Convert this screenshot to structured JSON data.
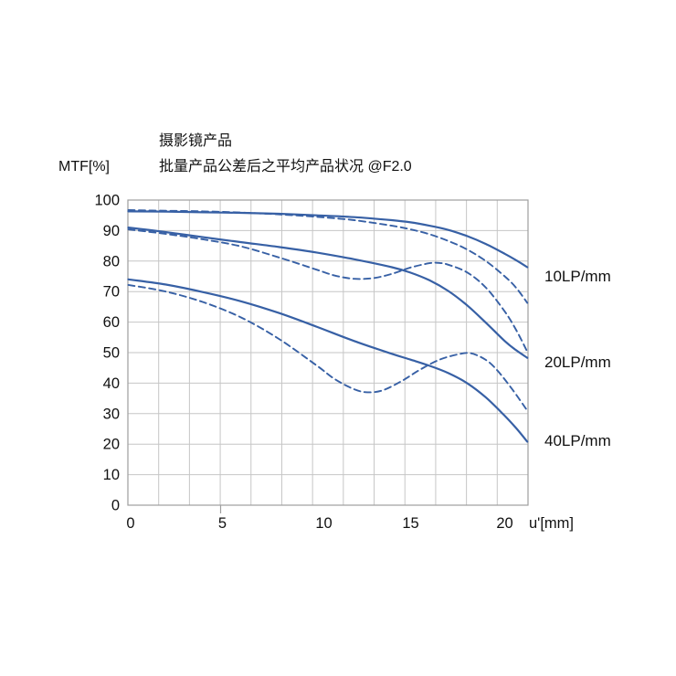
{
  "chart_data": {
    "type": "line",
    "title": "摄影镜产品",
    "subtitle": "批量产品公差后之平均产品状况 @F2.0",
    "ylabel": "MTF[%]",
    "xlabel": "u'[mm]",
    "xlim": [
      0,
      21.2
    ],
    "ylim": [
      0,
      100
    ],
    "x_ticks": [
      0,
      5,
      10,
      15,
      20
    ],
    "y_ticks": [
      0,
      10,
      20,
      30,
      40,
      50,
      60,
      70,
      80,
      90,
      100
    ],
    "grid": {
      "visible": true,
      "columns": 13,
      "rows": 10,
      "aligned_to_ticks": false
    },
    "legend_position": "right",
    "line_color": "#3760a5",
    "grid_color": "#c6c6c6",
    "axis_color": "#9e9e9e",
    "text_color": "#111111",
    "series_labels": [
      {
        "text": "10LP/mm"
      },
      {
        "text": "20LP/mm"
      },
      {
        "text": "40LP/mm"
      }
    ],
    "series": [
      {
        "name": "10LP/mm solid",
        "style": "solid",
        "points": [
          [
            0,
            96.3
          ],
          [
            2,
            96.2
          ],
          [
            4,
            96.0
          ],
          [
            6,
            95.8
          ],
          [
            8,
            95.5
          ],
          [
            10,
            95.0
          ],
          [
            12,
            94.4
          ],
          [
            14,
            93.4
          ],
          [
            15,
            92.7
          ],
          [
            16,
            91.6
          ],
          [
            17,
            90.2
          ],
          [
            18,
            88.2
          ],
          [
            19,
            85.6
          ],
          [
            20,
            82.4
          ],
          [
            20.6,
            80.3
          ],
          [
            21.2,
            78.0
          ]
        ]
      },
      {
        "name": "10LP/mm dashed",
        "style": "dashed",
        "points": [
          [
            0,
            96.7
          ],
          [
            2,
            96.5
          ],
          [
            4,
            96.3
          ],
          [
            6,
            95.9
          ],
          [
            8,
            95.3
          ],
          [
            10,
            94.5
          ],
          [
            12,
            93.4
          ],
          [
            14,
            91.6
          ],
          [
            15,
            90.4
          ],
          [
            16,
            88.8
          ],
          [
            17,
            86.6
          ],
          [
            18,
            83.8
          ],
          [
            19,
            80.0
          ],
          [
            20,
            75.0
          ],
          [
            20.6,
            71.3
          ],
          [
            21.2,
            66.3
          ]
        ]
      },
      {
        "name": "20LP/mm solid",
        "style": "solid",
        "points": [
          [
            0,
            91.0
          ],
          [
            2,
            89.5
          ],
          [
            4,
            87.8
          ],
          [
            6,
            86.2
          ],
          [
            8,
            84.6
          ],
          [
            10,
            82.8
          ],
          [
            12,
            80.6
          ],
          [
            14,
            78.0
          ],
          [
            15,
            76.2
          ],
          [
            16,
            73.7
          ],
          [
            17,
            70.2
          ],
          [
            18,
            65.5
          ],
          [
            19,
            59.8
          ],
          [
            20,
            53.8
          ],
          [
            20.6,
            50.8
          ],
          [
            21.2,
            48.3
          ]
        ]
      },
      {
        "name": "20LP/mm dashed",
        "style": "dashed",
        "points": [
          [
            0,
            90.4
          ],
          [
            2,
            88.9
          ],
          [
            4,
            87.1
          ],
          [
            6,
            84.8
          ],
          [
            8,
            81.2
          ],
          [
            10,
            77.2
          ],
          [
            11,
            75.2
          ],
          [
            12,
            74.2
          ],
          [
            13,
            74.4
          ],
          [
            14,
            75.8
          ],
          [
            15,
            77.9
          ],
          [
            16,
            79.3
          ],
          [
            16.5,
            79.4
          ],
          [
            17,
            78.8
          ],
          [
            18,
            76.3
          ],
          [
            19,
            71.3
          ],
          [
            20,
            63.5
          ],
          [
            20.6,
            57.5
          ],
          [
            21.2,
            50.3
          ]
        ]
      },
      {
        "name": "40LP/mm solid",
        "style": "solid",
        "points": [
          [
            0,
            74.0
          ],
          [
            2,
            72.3
          ],
          [
            4,
            69.8
          ],
          [
            6,
            66.8
          ],
          [
            8,
            63.0
          ],
          [
            10,
            58.5
          ],
          [
            12,
            53.8
          ],
          [
            14,
            49.6
          ],
          [
            15,
            47.7
          ],
          [
            16,
            45.7
          ],
          [
            17,
            43.3
          ],
          [
            18,
            40.0
          ],
          [
            19,
            35.3
          ],
          [
            20,
            29.3
          ],
          [
            20.6,
            25.3
          ],
          [
            21.2,
            20.8
          ]
        ]
      },
      {
        "name": "40LP/mm dashed",
        "style": "dashed",
        "points": [
          [
            0,
            72.2
          ],
          [
            2,
            70.0
          ],
          [
            4,
            66.5
          ],
          [
            6,
            61.5
          ],
          [
            8,
            54.5
          ],
          [
            10,
            45.8
          ],
          [
            11,
            41.2
          ],
          [
            12,
            38.0
          ],
          [
            12.7,
            37.0
          ],
          [
            13.5,
            37.6
          ],
          [
            14.5,
            40.6
          ],
          [
            15.5,
            44.4
          ],
          [
            16.5,
            47.6
          ],
          [
            17.5,
            49.4
          ],
          [
            18.2,
            49.8
          ],
          [
            19,
            47.6
          ],
          [
            19.6,
            44.2
          ],
          [
            20.4,
            38.0
          ],
          [
            21.2,
            31.0
          ]
        ]
      }
    ]
  }
}
